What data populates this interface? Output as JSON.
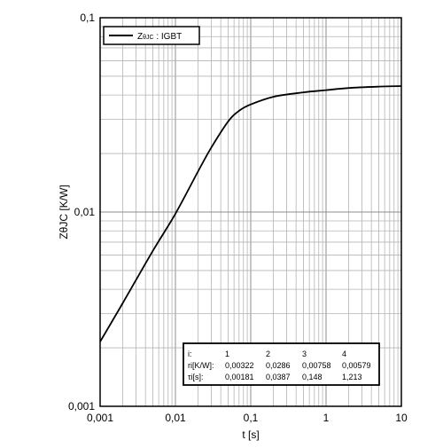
{
  "chart_data": {
    "type": "line",
    "x_scale": "log",
    "y_scale": "log",
    "xlim": [
      0.001,
      10
    ],
    "ylim": [
      0.001,
      0.1
    ],
    "grid": true,
    "xlabel": "t [s]",
    "ylabel": "ZθJC [K/W]",
    "x_tick_labels": [
      "0,001",
      "0,01",
      "0,1",
      "1",
      "10"
    ],
    "y_tick_labels": [
      "0,001",
      "0,01",
      "0,1"
    ],
    "legend": {
      "position": "top-left",
      "label_main": "Z",
      "label_sub": "θJC",
      "label_rest": " : IGBT"
    },
    "series": [
      {
        "name": "ZθJC : IGBT",
        "x": [
          0.001,
          0.002,
          0.005,
          0.01,
          0.02,
          0.03,
          0.05,
          0.07,
          0.1,
          0.2,
          0.5,
          1,
          2,
          5,
          10
        ],
        "y": [
          0.00215,
          0.0034,
          0.0063,
          0.0098,
          0.0162,
          0.0215,
          0.0292,
          0.0332,
          0.0358,
          0.0392,
          0.0413,
          0.0424,
          0.0435,
          0.0442,
          0.0445
        ]
      }
    ],
    "table": {
      "header": [
        "i:",
        "1",
        "2",
        "3",
        "4"
      ],
      "rows": [
        [
          "ri[K/W]:",
          "0,00322",
          "0,0286",
          "0,00758",
          "0,00579"
        ],
        [
          "τi[s]:",
          "0,00181",
          "0,0387",
          "0,148",
          "1,213"
        ]
      ]
    }
  }
}
